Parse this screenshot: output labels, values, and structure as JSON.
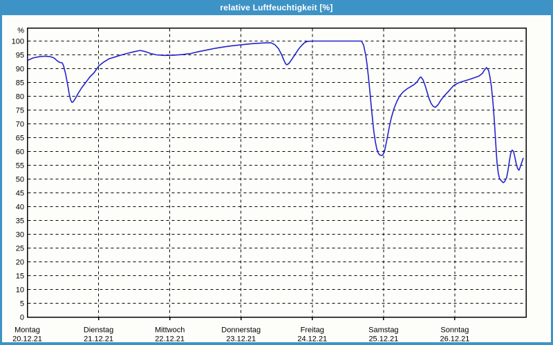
{
  "window": {
    "title": "relative Luftfeuchtigkeit [%]"
  },
  "colors": {
    "titlebar": "#3D93C6",
    "frame_border": "#3D93C6",
    "panel_background": "#FDFDFA",
    "axis": "#000000",
    "grid": "#000000",
    "line": "#2222CC",
    "title_text": "#FFFFFF",
    "label_text": "#000000"
  },
  "chart_data": {
    "type": "line",
    "title": "relative Luftfeuchtigkeit [%]",
    "ylabel": "%",
    "y_unit_label": "%",
    "ylim": [
      0,
      104.75
    ],
    "y_ticks": [
      0,
      5,
      10,
      15,
      20,
      25,
      30,
      35,
      40,
      45,
      50,
      55,
      60,
      65,
      70,
      75,
      80,
      85,
      90,
      95,
      100
    ],
    "grid": "dashed",
    "legend_position": "none",
    "x_days": [
      {
        "name": "Montag",
        "date": "20.12.21"
      },
      {
        "name": "Dienstag",
        "date": "21.12.21"
      },
      {
        "name": "Mittwoch",
        "date": "22.12.21"
      },
      {
        "name": "Donnerstag",
        "date": "23.12.21"
      },
      {
        "name": "Freitag",
        "date": "24.12.21"
      },
      {
        "name": "Samstag",
        "date": "25.12.21"
      },
      {
        "name": "Sonntag",
        "date": "26.12.21"
      }
    ],
    "series": [
      {
        "name": "relative Luftfeuchtigkeit",
        "unit": "%",
        "color": "#2222CC",
        "x_unit": "days_since_monday_00:00",
        "points": [
          [
            0.005,
            93.0
          ],
          [
            0.082,
            93.9
          ],
          [
            0.16,
            94.3
          ],
          [
            0.238,
            94.5
          ],
          [
            0.315,
            94.4
          ],
          [
            0.374,
            93.9
          ],
          [
            0.422,
            92.8
          ],
          [
            0.451,
            92.3
          ],
          [
            0.49,
            92.1
          ],
          [
            0.509,
            91.0
          ],
          [
            0.538,
            88.0
          ],
          [
            0.568,
            84.0
          ],
          [
            0.587,
            81.0
          ],
          [
            0.606,
            78.8
          ],
          [
            0.626,
            77.8
          ],
          [
            0.645,
            78.0
          ],
          [
            0.674,
            79.2
          ],
          [
            0.713,
            81.0
          ],
          [
            0.762,
            83.0
          ],
          [
            0.82,
            85.0
          ],
          [
            0.878,
            87.0
          ],
          [
            0.936,
            88.5
          ],
          [
            1.004,
            91.0
          ],
          [
            1.072,
            92.4
          ],
          [
            1.15,
            93.6
          ],
          [
            1.227,
            94.2
          ],
          [
            1.315,
            94.9
          ],
          [
            1.412,
            95.6
          ],
          [
            1.509,
            96.2
          ],
          [
            1.586,
            96.6
          ],
          [
            1.654,
            96.2
          ],
          [
            1.732,
            95.5
          ],
          [
            1.81,
            95.0
          ],
          [
            1.926,
            94.8
          ],
          [
            2.062,
            94.9
          ],
          [
            2.178,
            95.1
          ],
          [
            2.295,
            95.5
          ],
          [
            2.411,
            96.2
          ],
          [
            2.527,
            96.8
          ],
          [
            2.644,
            97.4
          ],
          [
            2.76,
            97.9
          ],
          [
            2.877,
            98.3
          ],
          [
            2.993,
            98.6
          ],
          [
            3.09,
            98.9
          ],
          [
            3.187,
            99.1
          ],
          [
            3.304,
            99.3
          ],
          [
            3.42,
            99.4
          ],
          [
            3.478,
            98.6
          ],
          [
            3.527,
            97.2
          ],
          [
            3.566,
            95.2
          ],
          [
            3.595,
            93.5
          ],
          [
            3.624,
            91.8
          ],
          [
            3.643,
            91.4
          ],
          [
            3.672,
            91.9
          ],
          [
            3.711,
            93.3
          ],
          [
            3.76,
            95.2
          ],
          [
            3.808,
            97.1
          ],
          [
            3.857,
            98.6
          ],
          [
            3.896,
            99.5
          ],
          [
            3.934,
            99.9
          ],
          [
            4.002,
            100.0
          ],
          [
            4.691,
            100.0
          ],
          [
            4.72,
            98.5
          ],
          [
            4.749,
            95.0
          ],
          [
            4.769,
            91.5
          ],
          [
            4.788,
            87.0
          ],
          [
            4.807,
            82.0
          ],
          [
            4.827,
            76.5
          ],
          [
            4.846,
            71.5
          ],
          [
            4.865,
            67.0
          ],
          [
            4.885,
            63.5
          ],
          [
            4.904,
            61.0
          ],
          [
            4.924,
            59.5
          ],
          [
            4.943,
            58.8
          ],
          [
            4.972,
            58.5
          ],
          [
            4.991,
            58.8
          ],
          [
            5.011,
            59.8
          ],
          [
            5.03,
            62.0
          ],
          [
            5.049,
            64.5
          ],
          [
            5.078,
            68.5
          ],
          [
            5.107,
            72.0
          ],
          [
            5.146,
            75.5
          ],
          [
            5.185,
            78.0
          ],
          [
            5.224,
            80.0
          ],
          [
            5.272,
            81.5
          ],
          [
            5.33,
            82.7
          ],
          [
            5.389,
            83.6
          ],
          [
            5.437,
            84.4
          ],
          [
            5.476,
            85.4
          ],
          [
            5.505,
            86.6
          ],
          [
            5.524,
            87.0
          ],
          [
            5.553,
            86.0
          ],
          [
            5.583,
            84.0
          ],
          [
            5.612,
            81.5
          ],
          [
            5.641,
            79.0
          ],
          [
            5.67,
            77.3
          ],
          [
            5.699,
            76.3
          ],
          [
            5.728,
            76.0
          ],
          [
            5.767,
            77.0
          ],
          [
            5.805,
            78.6
          ],
          [
            5.854,
            80.2
          ],
          [
            5.912,
            81.8
          ],
          [
            5.98,
            83.8
          ],
          [
            6.048,
            84.8
          ],
          [
            6.116,
            85.4
          ],
          [
            6.194,
            86.0
          ],
          [
            6.271,
            86.7
          ],
          [
            6.339,
            87.3
          ],
          [
            6.388,
            88.3
          ],
          [
            6.417,
            89.5
          ],
          [
            6.446,
            90.4
          ],
          [
            6.475,
            89.3
          ],
          [
            6.494,
            87.0
          ],
          [
            6.514,
            83.5
          ],
          [
            6.533,
            78.5
          ],
          [
            6.553,
            72.0
          ],
          [
            6.572,
            64.0
          ],
          [
            6.591,
            56.5
          ],
          [
            6.611,
            52.0
          ],
          [
            6.63,
            50.0
          ],
          [
            6.659,
            49.2
          ],
          [
            6.679,
            48.7
          ],
          [
            6.698,
            49.0
          ],
          [
            6.727,
            50.5
          ],
          [
            6.746,
            53.0
          ],
          [
            6.766,
            56.5
          ],
          [
            6.785,
            59.3
          ],
          [
            6.804,
            60.5
          ],
          [
            6.824,
            60.0
          ],
          [
            6.843,
            58.0
          ],
          [
            6.862,
            55.5
          ],
          [
            6.882,
            53.8
          ],
          [
            6.901,
            53.2
          ],
          [
            6.92,
            54.5
          ],
          [
            6.94,
            56.0
          ],
          [
            6.959,
            57.5
          ]
        ]
      }
    ]
  }
}
